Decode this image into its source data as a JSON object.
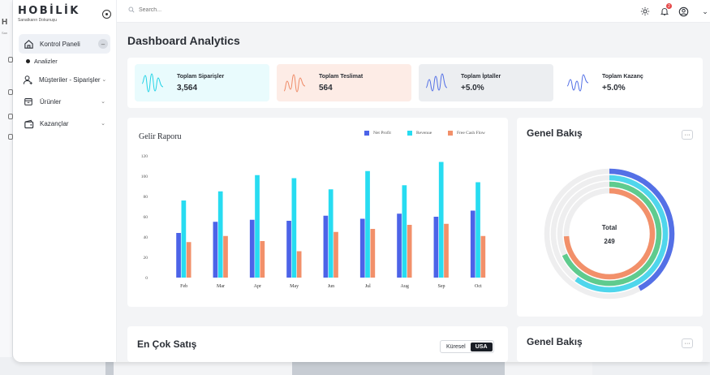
{
  "brand": {
    "name": "HOBİLİK",
    "tagline": "Sanatkarın Dokunuşu",
    "ghost_initial": "H",
    "ghost_sub": "San"
  },
  "sidebar": {
    "items": [
      {
        "label": "Kontrol Paneli",
        "icon": "home-icon"
      },
      {
        "label": "Müşteriler - Siparişler",
        "icon": "user-add-icon"
      },
      {
        "label": "Ürünler",
        "icon": "box-icon"
      },
      {
        "label": "Kazançlar",
        "icon": "wallet-icon"
      }
    ],
    "sub_item": "Analizler"
  },
  "topbar": {
    "search_placeholder": "Search...",
    "notification_count": "2"
  },
  "page_title": "Dashboard Analytics",
  "stats": [
    {
      "label": "Toplam Siparişler",
      "value": "3,564",
      "bg": "#e9fbfd",
      "wave_color": "#22d3e6"
    },
    {
      "label": "Toplam Teslimat",
      "value": "564",
      "bg": "#fdece6",
      "wave_color": "#ef8b68"
    },
    {
      "label": "Toplam İptaller",
      "value": "+5.0%",
      "bg": "#eceef1",
      "wave_color": "#5470e6"
    },
    {
      "label": "Toplam Kazanç",
      "value": "+5.0%",
      "bg": "#ffffff",
      "wave_color": "#5470e6"
    }
  ],
  "revenue": {
    "title": "Gelir Raporu",
    "chart_data": {
      "type": "bar",
      "categories": [
        "Feb",
        "Mar",
        "Apr",
        "May",
        "Jun",
        "Jul",
        "Aug",
        "Sep",
        "Oct"
      ],
      "series": [
        {
          "name": "Net Profit",
          "color": "#4c63e8",
          "values": [
            44,
            55,
            57,
            56,
            61,
            58,
            63,
            60,
            66
          ]
        },
        {
          "name": "Revenue",
          "color": "#27dcf1",
          "values": [
            76,
            85,
            101,
            98,
            87,
            105,
            91,
            114,
            94
          ]
        },
        {
          "name": "Free Cash Flow",
          "color": "#f2906a",
          "values": [
            35,
            41,
            36,
            26,
            45,
            48,
            52,
            53,
            41
          ]
        }
      ],
      "yticks": [
        0,
        20,
        40,
        60,
        80,
        100,
        120
      ],
      "ylim": [
        0,
        120
      ],
      "legend": "top-right",
      "grid": false
    }
  },
  "overview": {
    "title": "Genel Bakış",
    "more": "···",
    "center_label": "Total",
    "center_value": "249",
    "rings": [
      {
        "color": "#5470e6",
        "fraction": 0.42
      },
      {
        "color": "#4fd6ec",
        "fraction": 0.6
      },
      {
        "color": "#5fcb8e",
        "fraction": 0.68
      },
      {
        "color": "#f2906a",
        "fraction": 0.74
      }
    ],
    "track_color": "#eeeeef"
  },
  "best_sellers": {
    "title": "En Çok Satış",
    "toggle": [
      "Küresel",
      "USA"
    ]
  },
  "overview2": {
    "title": "Genel Bakış",
    "more": "···"
  }
}
